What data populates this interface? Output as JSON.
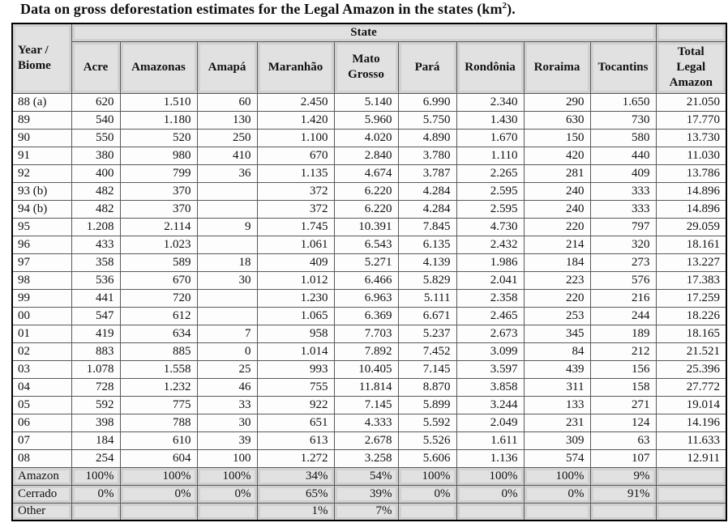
{
  "caption": {
    "text": "Data on gross deforestation estimates for the Legal Amazon in the states (km",
    "superscript": "2",
    "suffix": ")."
  },
  "table": {
    "header": {
      "year_biome_label": "Year / Biome",
      "state_group_label": "State",
      "state_columns": [
        "Acre",
        "Amazonas",
        "Amapá",
        "Maranhão",
        "Mato Grosso",
        "Pará",
        "Rondônia",
        "Roraima",
        "Tocantins"
      ],
      "total_label": "Total Legal Amazon"
    },
    "year_rows": [
      {
        "label": "88 (a)",
        "values": [
          "620",
          "1.510",
          "60",
          "2.450",
          "5.140",
          "6.990",
          "2.340",
          "290",
          "1.650",
          "21.050"
        ]
      },
      {
        "label": "89",
        "values": [
          "540",
          "1.180",
          "130",
          "1.420",
          "5.960",
          "5.750",
          "1.430",
          "630",
          "730",
          "17.770"
        ]
      },
      {
        "label": "90",
        "values": [
          "550",
          "520",
          "250",
          "1.100",
          "4.020",
          "4.890",
          "1.670",
          "150",
          "580",
          "13.730"
        ]
      },
      {
        "label": "91",
        "values": [
          "380",
          "980",
          "410",
          "670",
          "2.840",
          "3.780",
          "1.110",
          "420",
          "440",
          "11.030"
        ]
      },
      {
        "label": "92",
        "values": [
          "400",
          "799",
          "36",
          "1.135",
          "4.674",
          "3.787",
          "2.265",
          "281",
          "409",
          "13.786"
        ]
      },
      {
        "label": "93 (b)",
        "values": [
          "482",
          "370",
          "",
          "372",
          "6.220",
          "4.284",
          "2.595",
          "240",
          "333",
          "14.896"
        ]
      },
      {
        "label": "94 (b)",
        "values": [
          "482",
          "370",
          "",
          "372",
          "6.220",
          "4.284",
          "2.595",
          "240",
          "333",
          "14.896"
        ]
      },
      {
        "label": "95",
        "values": [
          "1.208",
          "2.114",
          "9",
          "1.745",
          "10.391",
          "7.845",
          "4.730",
          "220",
          "797",
          "29.059"
        ]
      },
      {
        "label": "96",
        "values": [
          "433",
          "1.023",
          "",
          "1.061",
          "6.543",
          "6.135",
          "2.432",
          "214",
          "320",
          "18.161"
        ]
      },
      {
        "label": "97",
        "values": [
          "358",
          "589",
          "18",
          "409",
          "5.271",
          "4.139",
          "1.986",
          "184",
          "273",
          "13.227"
        ]
      },
      {
        "label": "98",
        "values": [
          "536",
          "670",
          "30",
          "1.012",
          "6.466",
          "5.829",
          "2.041",
          "223",
          "576",
          "17.383"
        ]
      },
      {
        "label": "99",
        "values": [
          "441",
          "720",
          "",
          "1.230",
          "6.963",
          "5.111",
          "2.358",
          "220",
          "216",
          "17.259"
        ]
      },
      {
        "label": "00",
        "values": [
          "547",
          "612",
          "",
          "1.065",
          "6.369",
          "6.671",
          "2.465",
          "253",
          "244",
          "18.226"
        ]
      },
      {
        "label": "01",
        "values": [
          "419",
          "634",
          "7",
          "958",
          "7.703",
          "5.237",
          "2.673",
          "345",
          "189",
          "18.165"
        ]
      },
      {
        "label": "02",
        "values": [
          "883",
          "885",
          "0",
          "1.014",
          "7.892",
          "7.452",
          "3.099",
          "84",
          "212",
          "21.521"
        ]
      },
      {
        "label": "03",
        "values": [
          "1.078",
          "1.558",
          "25",
          "993",
          "10.405",
          "7.145",
          "3.597",
          "439",
          "156",
          "25.396"
        ]
      },
      {
        "label": "04",
        "values": [
          "728",
          "1.232",
          "46",
          "755",
          "11.814",
          "8.870",
          "3.858",
          "311",
          "158",
          "27.772"
        ]
      },
      {
        "label": "05",
        "values": [
          "592",
          "775",
          "33",
          "922",
          "7.145",
          "5.899",
          "3.244",
          "133",
          "271",
          "19.014"
        ]
      },
      {
        "label": "06",
        "values": [
          "398",
          "788",
          "30",
          "651",
          "4.333",
          "5.592",
          "2.049",
          "231",
          "124",
          "14.196"
        ]
      },
      {
        "label": "07",
        "values": [
          "184",
          "610",
          "39",
          "613",
          "2.678",
          "5.526",
          "1.611",
          "309",
          "63",
          "11.633"
        ]
      },
      {
        "label": "08",
        "values": [
          "254",
          "604",
          "100",
          "1.272",
          "3.258",
          "5.606",
          "1.136",
          "574",
          "107",
          "12.911"
        ]
      }
    ],
    "biome_rows": [
      {
        "label": "Amazon",
        "values": [
          "100%",
          "100%",
          "100%",
          "34%",
          "54%",
          "100%",
          "100%",
          "100%",
          "9%",
          ""
        ]
      },
      {
        "label": "Cerrado",
        "values": [
          "0%",
          "0%",
          "0%",
          "65%",
          "39%",
          "0%",
          "0%",
          "0%",
          "91%",
          ""
        ]
      },
      {
        "label": "Other",
        "values": [
          "",
          "",
          "",
          "1%",
          "7%",
          "",
          "",
          "",
          "",
          ""
        ]
      }
    ]
  },
  "colors": {
    "header_fill": "#d0d0d0",
    "header_fill_inner": "#e1e1e1",
    "inner_border": "#595959",
    "outer_border": "#000000",
    "cell_fill": "#fdfdfd"
  }
}
